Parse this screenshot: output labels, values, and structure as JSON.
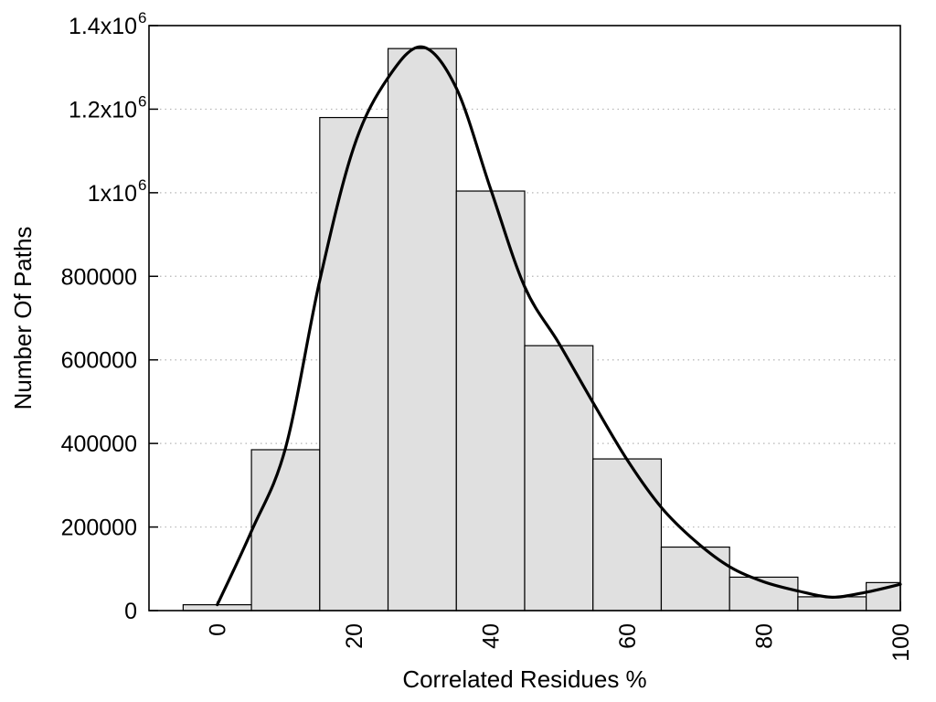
{
  "chart_data": {
    "type": "bar",
    "subtype": "histogram_with_smooth_curve",
    "title": "",
    "xlabel": "Correlated Residues %",
    "ylabel": "Number Of Paths",
    "xlim": [
      -10,
      100
    ],
    "ylim": [
      0,
      1400000
    ],
    "x_ticks": [
      0,
      20,
      40,
      60,
      80,
      100
    ],
    "x_tick_rotation_deg": -90,
    "y_ticks": [
      {
        "value": 0,
        "label": "0"
      },
      {
        "value": 200000,
        "label": "200000"
      },
      {
        "value": 400000,
        "label": "400000"
      },
      {
        "value": 600000,
        "label": "600000"
      },
      {
        "value": 800000,
        "label": "800000"
      },
      {
        "value": 1000000,
        "label": "1x10^6"
      },
      {
        "value": 1200000,
        "label": "1.2x10^6"
      },
      {
        "value": 1400000,
        "label": "1.4x10^6"
      }
    ],
    "grid": {
      "horizontal": true,
      "vertical": false,
      "style": "dotted"
    },
    "legend": "none",
    "bars": {
      "bin_width": 10,
      "centers": [
        0,
        10,
        20,
        30,
        40,
        50,
        60,
        70,
        80,
        90,
        100
      ],
      "values": [
        14000,
        385000,
        1180000,
        1345000,
        1004000,
        634000,
        363000,
        152000,
        80000,
        33000,
        67000
      ]
    },
    "smooth_curve": {
      "x": [
        0,
        5,
        10,
        15,
        20,
        25,
        30,
        35,
        40,
        45,
        50,
        55,
        60,
        65,
        70,
        75,
        80,
        85,
        90,
        95,
        100
      ],
      "y": [
        14000,
        190000,
        390000,
        790000,
        1110000,
        1275000,
        1349000,
        1250000,
        1010000,
        775000,
        640000,
        498000,
        361000,
        247000,
        166000,
        105000,
        69000,
        47000,
        32000,
        44000,
        63000
      ]
    },
    "colors": {
      "background": "#ffffff",
      "bar_fill": "#e0e0e0",
      "bar_border": "#000000",
      "curve": "#000000",
      "grid": "#b5b5b5",
      "axis": "#000000",
      "text": "#000000"
    }
  }
}
